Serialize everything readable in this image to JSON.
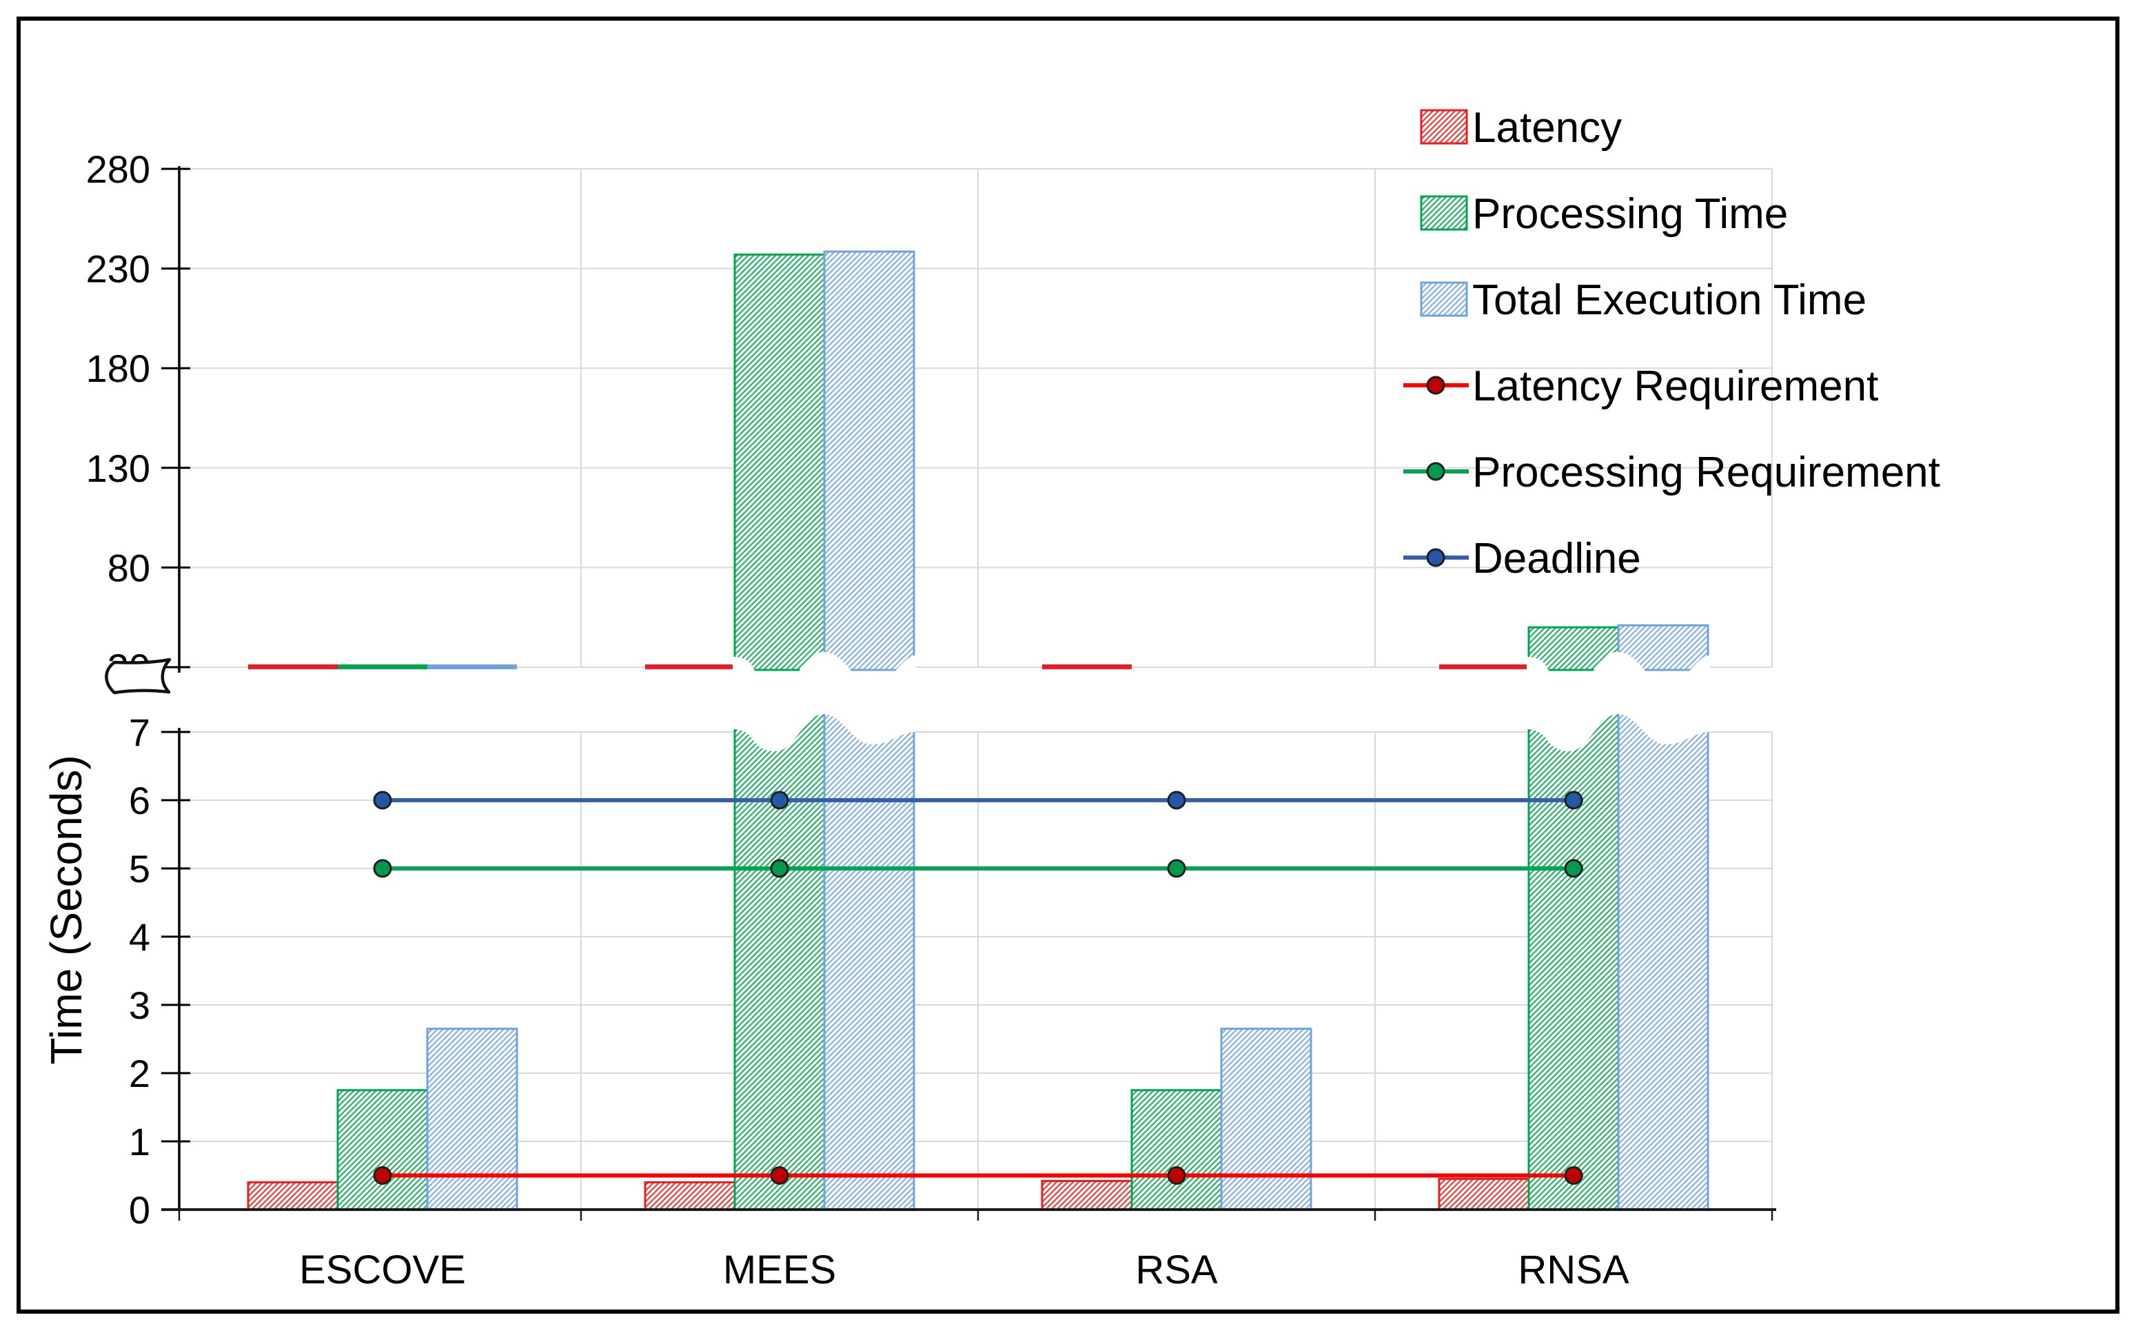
{
  "figure": {
    "background": "#ffffff",
    "border_color": "#000000"
  },
  "chart_data": {
    "type": "bar",
    "title": "",
    "xlabel": "",
    "ylabel": "Time (Seconds)",
    "grid": true,
    "legend_position": "top-right",
    "categories": [
      "ESCOVE",
      "MEES",
      "RSA",
      "RNSA"
    ],
    "series": [
      {
        "name": "Latency",
        "color": "#EC1C24",
        "hatch": "#EE3B33",
        "values": [
          0.4,
          0.4,
          0.42,
          0.45
        ]
      },
      {
        "name": "Processing Time",
        "color": "#00A651",
        "hatch": "#22AF63",
        "values": [
          1.75,
          237,
          1.75,
          50
        ]
      },
      {
        "name": "Total Execution Time",
        "color": "#6FA3DC",
        "hatch": "#8FB6E3",
        "values": [
          2.65,
          238.5,
          2.65,
          51
        ]
      }
    ],
    "lines": [
      {
        "name": "Latency Requirement",
        "color": "#FF0000",
        "marker_fill": "#C00000",
        "value": 0.5
      },
      {
        "name": "Processing Requirement",
        "color": "#00A651",
        "marker_fill": "#009A4E",
        "value": 5
      },
      {
        "name": "Deadline",
        "color": "#3560AE",
        "marker_fill": "#2457A8",
        "value": 6
      }
    ],
    "axis_break": {
      "upper_range": [
        30,
        280
      ],
      "upper_ticks": [
        280,
        230,
        180,
        130,
        80,
        30
      ],
      "lower_range": [
        0,
        7
      ],
      "lower_ticks": [
        7,
        6,
        5,
        4,
        3,
        2,
        1,
        0
      ]
    },
    "baseline_marks_by_category": [
      [
        0,
        1,
        2
      ],
      [
        0
      ],
      [
        0
      ],
      [
        0
      ]
    ],
    "gridline_color": "#D9D9D9"
  }
}
